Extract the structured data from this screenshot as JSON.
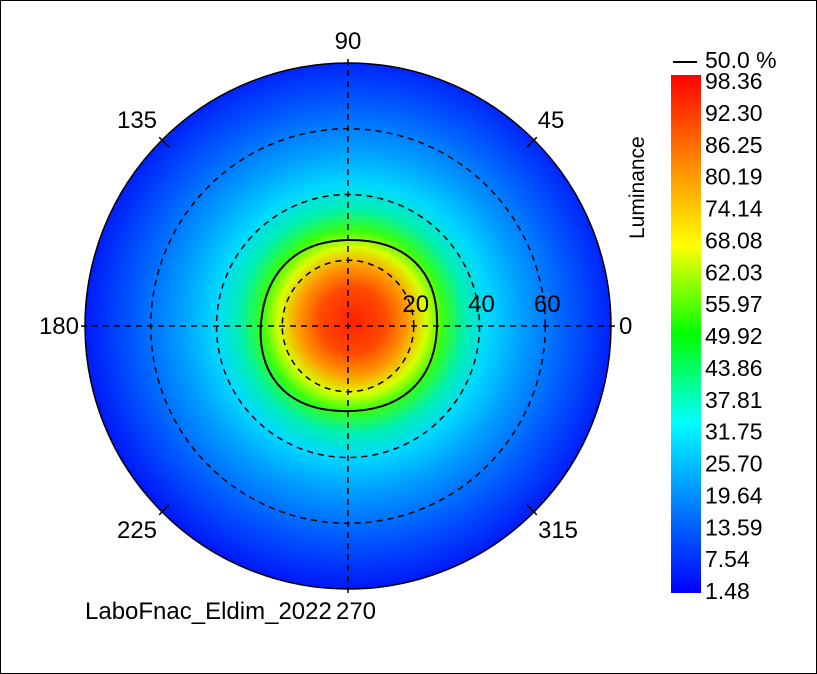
{
  "chart_data": {
    "type": "heatmap",
    "projection": "polar",
    "angle_labels": [
      "90",
      "45",
      "0",
      "315",
      "270",
      "225",
      "180",
      "135"
    ],
    "angle_values": [
      90,
      45,
      0,
      315,
      270,
      225,
      180,
      135
    ],
    "radial_labels": [
      "20",
      "40",
      "60"
    ],
    "radial_values": [
      20,
      40,
      60
    ],
    "radial_max": 80,
    "grid": true,
    "colorbar": {
      "title": "Luminance",
      "ticks": [
        "98.36",
        "92.30",
        "86.25",
        "80.19",
        "74.14",
        "68.08",
        "62.03",
        "55.97",
        "49.92",
        "43.86",
        "37.81",
        "31.75",
        "25.70",
        "19.64",
        "13.59",
        "7.54",
        "1.48"
      ],
      "min": 1.48,
      "max": 98.36,
      "contour_label": "50.0 %",
      "colors": [
        "#ff0000",
        "#ff8000",
        "#ffff00",
        "#00ff00",
        "#00ffff",
        "#0080ff",
        "#0000ff"
      ]
    },
    "contour_level_percent": 50.0,
    "peak": {
      "theta": 180,
      "r": 3,
      "value": 98.36
    },
    "footer_text": "LaboFnac_Eldim_2022"
  }
}
